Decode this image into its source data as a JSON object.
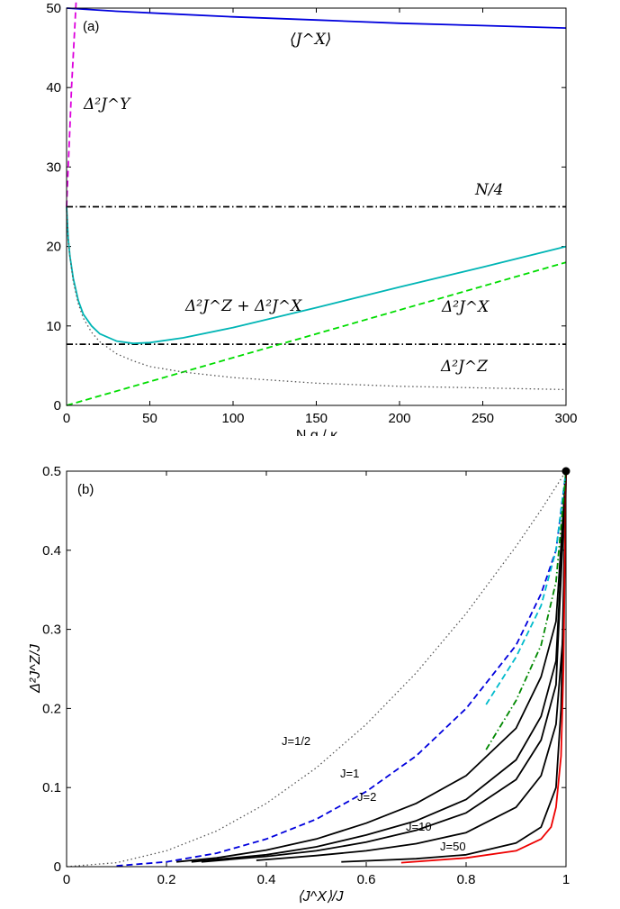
{
  "chart_data": [
    {
      "type": "line",
      "panel_label": "(a)",
      "xlabel": "N g / κ",
      "ylabel": "",
      "xlim": [
        0,
        300
      ],
      "ylim": [
        0,
        50
      ],
      "xticks": [
        "0",
        "50",
        "100",
        "150",
        "200",
        "250",
        "300"
      ],
      "yticks": [
        "0",
        "10",
        "20",
        "30",
        "40",
        "50"
      ],
      "series": [
        {
          "name": "⟨J^X⟩",
          "color": "#0000dd",
          "style": "solid",
          "x": [
            0,
            30,
            60,
            100,
            150,
            200,
            250,
            300
          ],
          "y": [
            50,
            49.6,
            49.3,
            48.9,
            48.5,
            48.1,
            47.8,
            47.5
          ]
        },
        {
          "name": "Δ²J^Y",
          "color": "#dd00dd",
          "style": "dashed",
          "x": [
            0,
            1,
            2,
            3,
            4,
            5,
            6
          ],
          "y": [
            25,
            30,
            35,
            40,
            44,
            48,
            52
          ]
        },
        {
          "name": "N/4",
          "color": "#000000",
          "style": "dashdot",
          "x": [
            0,
            300
          ],
          "y": [
            25,
            25
          ]
        },
        {
          "name": "",
          "color": "#000000",
          "style": "dashdot",
          "x": [
            0,
            300
          ],
          "y": [
            7.7,
            7.7
          ]
        },
        {
          "name": "Δ²J^Z + Δ²J^X",
          "color": "#00b5b5",
          "style": "solid",
          "x": [
            0,
            1,
            2,
            4,
            7,
            10,
            15,
            20,
            30,
            40,
            50,
            70,
            100,
            150,
            200,
            250,
            300
          ],
          "y": [
            25,
            21,
            18.8,
            16,
            13.2,
            11.5,
            10,
            9,
            8.1,
            7.8,
            7.9,
            8.5,
            9.8,
            12.3,
            14.9,
            17.4,
            20
          ]
        },
        {
          "name": "Δ²J^X",
          "color": "#00dd00",
          "style": "dashed",
          "x": [
            0,
            300
          ],
          "y": [
            0,
            18
          ]
        },
        {
          "name": "Δ²J^Z",
          "color": "#555555",
          "style": "dotted",
          "x": [
            0,
            1,
            2,
            4,
            7,
            10,
            15,
            20,
            30,
            40,
            50,
            70,
            100,
            150,
            200,
            250,
            300
          ],
          "y": [
            25,
            20.8,
            18.7,
            15.6,
            12.8,
            11,
            9.2,
            8,
            6.5,
            5.6,
            4.9,
            4.2,
            3.5,
            2.8,
            2.4,
            2.2,
            2.0
          ]
        }
      ],
      "annotations": [
        "⟨J^X⟩",
        "Δ²J^Y",
        "N/4",
        "Δ²J^Z + Δ²J^X",
        "Δ²J^X",
        "Δ²J^Z"
      ]
    },
    {
      "type": "line",
      "panel_label": "(b)",
      "xlabel": "⟨J^X⟩/J",
      "ylabel": "Δ²J^Z/J",
      "xlim": [
        0,
        1
      ],
      "ylim": [
        0,
        0.5
      ],
      "xticks": [
        "0",
        "0.2",
        "0.4",
        "0.6",
        "0.8",
        "1"
      ],
      "yticks": [
        "0",
        "0.1",
        "0.2",
        "0.3",
        "0.4",
        "0.5"
      ],
      "point": {
        "x": 1,
        "y": 0.5
      },
      "series": [
        {
          "name": "J=1/2",
          "color": "#555555",
          "style": "dotted",
          "x": [
            0,
            0.1,
            0.2,
            0.3,
            0.4,
            0.5,
            0.6,
            0.7,
            0.8,
            0.9,
            0.95,
            1
          ],
          "y": [
            0,
            0.005,
            0.02,
            0.045,
            0.08,
            0.125,
            0.18,
            0.245,
            0.32,
            0.405,
            0.451,
            0.5
          ]
        },
        {
          "name": "J=1",
          "color": "#0000dd",
          "style": "dashed",
          "x": [
            0.1,
            0.2,
            0.3,
            0.4,
            0.5,
            0.6,
            0.7,
            0.8,
            0.9,
            0.95,
            0.98,
            1
          ],
          "y": [
            0.001,
            0.006,
            0.017,
            0.035,
            0.06,
            0.095,
            0.14,
            0.2,
            0.28,
            0.345,
            0.4,
            0.5
          ]
        },
        {
          "name": "J=2",
          "color": "#000000",
          "style": "solid",
          "x": [
            0.22,
            0.3,
            0.4,
            0.5,
            0.6,
            0.7,
            0.8,
            0.9,
            0.95,
            0.98,
            1
          ],
          "y": [
            0.006,
            0.011,
            0.021,
            0.035,
            0.055,
            0.08,
            0.115,
            0.175,
            0.24,
            0.31,
            0.5
          ]
        },
        {
          "name": "",
          "color": "#000000",
          "style": "solid",
          "x": [
            0.25,
            0.4,
            0.5,
            0.6,
            0.7,
            0.8,
            0.9,
            0.95,
            0.98,
            1
          ],
          "y": [
            0.006,
            0.015,
            0.025,
            0.04,
            0.058,
            0.085,
            0.135,
            0.19,
            0.26,
            0.5
          ]
        },
        {
          "name": "",
          "color": "#000000",
          "style": "solid",
          "x": [
            0.27,
            0.4,
            0.5,
            0.6,
            0.7,
            0.8,
            0.9,
            0.95,
            0.98,
            1
          ],
          "y": [
            0.006,
            0.013,
            0.02,
            0.031,
            0.046,
            0.068,
            0.11,
            0.16,
            0.23,
            0.5
          ]
        },
        {
          "name": "J=10",
          "color": "#000000",
          "style": "solid",
          "x": [
            0.38,
            0.5,
            0.6,
            0.7,
            0.8,
            0.9,
            0.95,
            0.98,
            0.995,
            1
          ],
          "y": [
            0.008,
            0.014,
            0.02,
            0.029,
            0.043,
            0.075,
            0.115,
            0.18,
            0.3,
            0.5
          ]
        },
        {
          "name": "J=50",
          "color": "#000000",
          "style": "solid",
          "x": [
            0.55,
            0.7,
            0.8,
            0.9,
            0.95,
            0.98,
            0.99,
            1
          ],
          "y": [
            0.006,
            0.01,
            0.015,
            0.03,
            0.05,
            0.1,
            0.2,
            0.5
          ]
        },
        {
          "name": "",
          "color": "#ee0000",
          "style": "solid",
          "x": [
            0.67,
            0.8,
            0.9,
            0.95,
            0.97,
            0.98,
            0.99,
            0.995,
            1
          ],
          "y": [
            0.005,
            0.011,
            0.02,
            0.035,
            0.05,
            0.075,
            0.14,
            0.25,
            0.5
          ]
        },
        {
          "name": "",
          "color": "#00bbcc",
          "style": "dashed",
          "x": [
            0.84,
            0.9,
            0.95,
            0.98,
            1
          ],
          "y": [
            0.205,
            0.265,
            0.33,
            0.4,
            0.5
          ]
        },
        {
          "name": "",
          "color": "#008800",
          "style": "dashdot",
          "x": [
            0.84,
            0.9,
            0.95,
            0.98,
            1
          ],
          "y": [
            0.148,
            0.21,
            0.28,
            0.36,
            0.5
          ]
        }
      ]
    }
  ]
}
